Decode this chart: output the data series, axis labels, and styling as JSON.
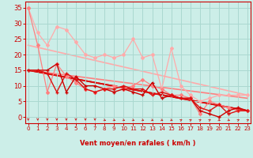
{
  "xlabel": "Vent moyen/en rafales ( km/h )",
  "background_color": "#cceee8",
  "grid_color": "#aad8d0",
  "x_ticks": [
    0,
    1,
    2,
    3,
    4,
    5,
    6,
    7,
    8,
    9,
    10,
    11,
    12,
    13,
    14,
    15,
    16,
    17,
    18,
    19,
    20,
    21,
    22,
    23
  ],
  "ylim": [
    -2,
    37
  ],
  "xlim": [
    -0.3,
    23.3
  ],
  "yticks": [
    0,
    5,
    10,
    15,
    20,
    25,
    30,
    35
  ],
  "lines": [
    {
      "x": [
        0,
        1,
        2,
        3,
        4,
        5,
        6,
        7,
        8,
        9,
        10,
        11,
        12,
        13,
        14,
        15,
        16,
        17,
        18,
        19,
        20,
        21,
        22,
        23
      ],
      "y": [
        35,
        27,
        23,
        29,
        28,
        24,
        20,
        19,
        20,
        19,
        20,
        25,
        19,
        20,
        9,
        22,
        10,
        7,
        5,
        6,
        7,
        7,
        7,
        7
      ],
      "color": "#ffaaaa",
      "linewidth": 0.9,
      "marker": "D",
      "markersize": 2.0,
      "zorder": 2
    },
    {
      "x": [
        0,
        1,
        2,
        3,
        4,
        5,
        6,
        7,
        8,
        9,
        10,
        11,
        12,
        13,
        14,
        15,
        16,
        17,
        18,
        19,
        20,
        21,
        22,
        23
      ],
      "y": [
        35,
        23,
        8,
        17,
        13,
        11,
        9,
        8,
        9,
        10,
        9,
        10,
        12,
        10,
        9,
        7,
        7,
        6,
        1,
        5,
        4,
        3,
        2,
        2
      ],
      "color": "#ff8080",
      "linewidth": 0.9,
      "marker": "D",
      "markersize": 2.0,
      "zorder": 3
    },
    {
      "x": [
        0,
        23
      ],
      "y": [
        23,
        7
      ],
      "color": "#ffaaaa",
      "linewidth": 1.2,
      "marker": null,
      "markersize": 0,
      "zorder": 1,
      "linestyle": "-"
    },
    {
      "x": [
        0,
        23
      ],
      "y": [
        15,
        6
      ],
      "color": "#ff8080",
      "linewidth": 1.2,
      "marker": null,
      "markersize": 0,
      "zorder": 1,
      "linestyle": "-"
    },
    {
      "x": [
        0,
        1,
        2,
        3,
        4,
        5,
        6,
        7,
        8,
        9,
        10,
        11,
        12,
        13,
        14,
        15,
        16,
        17,
        18,
        19,
        20,
        21,
        22,
        23
      ],
      "y": [
        15,
        15,
        15,
        17,
        8,
        13,
        10,
        10,
        9,
        8,
        9,
        8,
        7,
        11,
        6,
        7,
        6,
        6,
        2,
        1,
        0,
        2,
        3,
        2
      ],
      "color": "#cc0000",
      "linewidth": 1.0,
      "marker": "+",
      "markersize": 3.5,
      "zorder": 5
    },
    {
      "x": [
        0,
        1,
        2,
        3,
        4,
        5,
        6,
        7,
        8,
        9,
        10,
        11,
        12,
        13,
        14,
        15,
        16,
        17,
        18,
        19,
        20,
        21,
        22,
        23
      ],
      "y": [
        15,
        15,
        14,
        8,
        14,
        12,
        9,
        8,
        9,
        9,
        10,
        9,
        9,
        7,
        8,
        7,
        6,
        6,
        3,
        2,
        4,
        1,
        2,
        2
      ],
      "color": "#dd1111",
      "linewidth": 1.0,
      "marker": "+",
      "markersize": 3.5,
      "zorder": 5
    },
    {
      "x": [
        0,
        23
      ],
      "y": [
        15,
        2
      ],
      "color": "#cc0000",
      "linewidth": 1.3,
      "marker": null,
      "markersize": 0,
      "zorder": 1,
      "linestyle": "-"
    },
    {
      "x": [
        0,
        23
      ],
      "y": [
        15,
        2
      ],
      "color": "#dd1111",
      "linewidth": 1.3,
      "marker": null,
      "markersize": 0,
      "zorder": 1,
      "linestyle": "-"
    }
  ],
  "arrow_color": "#cc2222",
  "wind_directions": [
    0,
    0,
    0,
    0,
    0,
    0,
    0,
    0,
    45,
    45,
    45,
    45,
    45,
    45,
    45,
    45,
    135,
    135,
    135,
    135,
    45,
    45,
    135,
    135
  ],
  "tick_color": "#cc0000",
  "spine_color": "#cc0000",
  "tick_fontsize": 5,
  "xlabel_fontsize": 6
}
